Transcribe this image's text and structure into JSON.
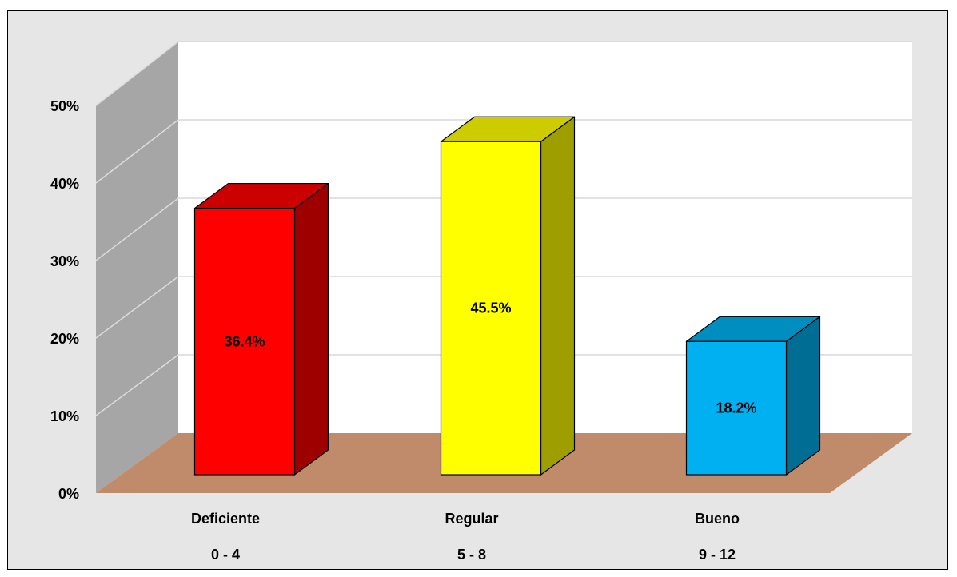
{
  "chart_data": {
    "type": "bar",
    "style": "3d-column",
    "categories": [
      "Deficiente",
      "Regular",
      "Bueno"
    ],
    "category_ranges": [
      "0 - 4",
      "5 - 8",
      "9 - 12"
    ],
    "values": [
      36.4,
      45.5,
      18.2
    ],
    "data_labels": [
      "36.4%",
      "45.5%",
      "18.2%"
    ],
    "bar_colors": [
      "#ff0000",
      "#ffff00",
      "#00b0f0"
    ],
    "ylim": [
      0,
      50
    ],
    "yticks": [
      0,
      10,
      20,
      30,
      40,
      50
    ],
    "ytick_labels": [
      "0%",
      "10%",
      "20%",
      "30%",
      "40%",
      "50%"
    ],
    "grid": true,
    "legend": "none"
  },
  "colors": {
    "chart_background": "#e6e6e6",
    "back_wall": "#ffffff",
    "side_wall": "#a6a6a6",
    "floor": "#bf8b6b",
    "gridlines": "#d9d9d9"
  }
}
